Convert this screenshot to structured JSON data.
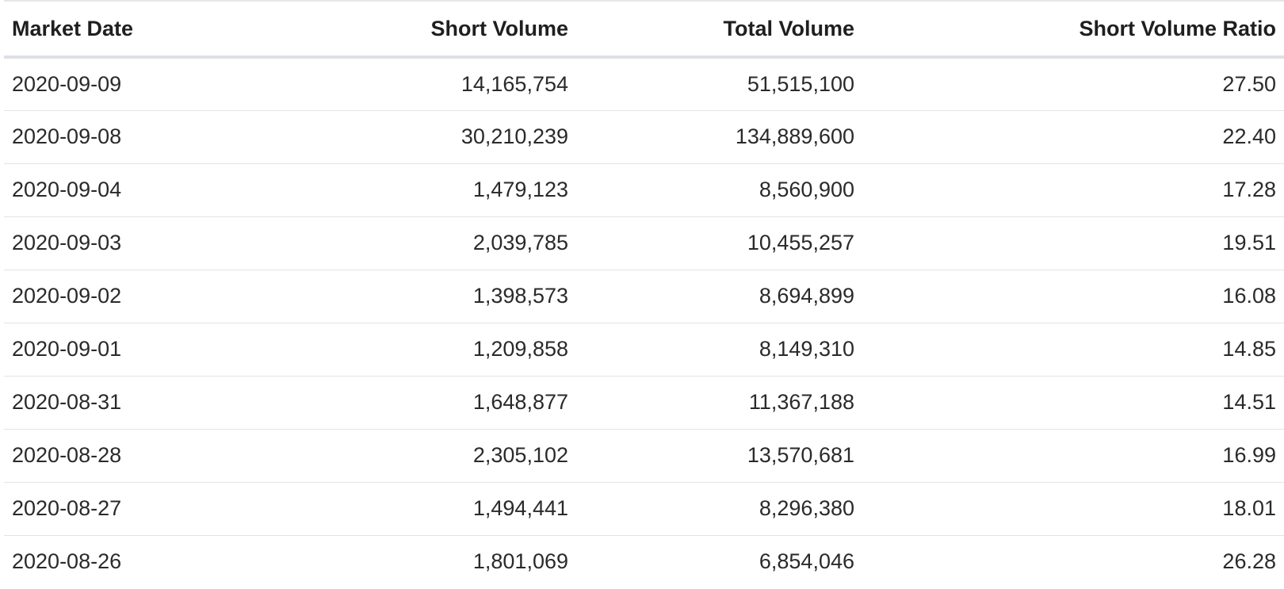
{
  "table": {
    "columns": [
      "Market Date",
      "Short Volume",
      "Total Volume",
      "Short Volume Ratio"
    ],
    "rows": [
      [
        "2020-09-09",
        "14,165,754",
        "51,515,100",
        "27.50"
      ],
      [
        "2020-09-08",
        "30,210,239",
        "134,889,600",
        "22.40"
      ],
      [
        "2020-09-04",
        "1,479,123",
        "8,560,900",
        "17.28"
      ],
      [
        "2020-09-03",
        "2,039,785",
        "10,455,257",
        "19.51"
      ],
      [
        "2020-09-02",
        "1,398,573",
        "8,694,899",
        "16.08"
      ],
      [
        "2020-09-01",
        "1,209,858",
        "8,149,310",
        "14.85"
      ],
      [
        "2020-08-31",
        "1,648,877",
        "11,367,188",
        "14.51"
      ],
      [
        "2020-08-28",
        "2,305,102",
        "13,570,681",
        "16.99"
      ],
      [
        "2020-08-27",
        "1,494,441",
        "8,296,380",
        "18.01"
      ],
      [
        "2020-08-26",
        "1,801,069",
        "6,854,046",
        "26.28"
      ]
    ]
  }
}
